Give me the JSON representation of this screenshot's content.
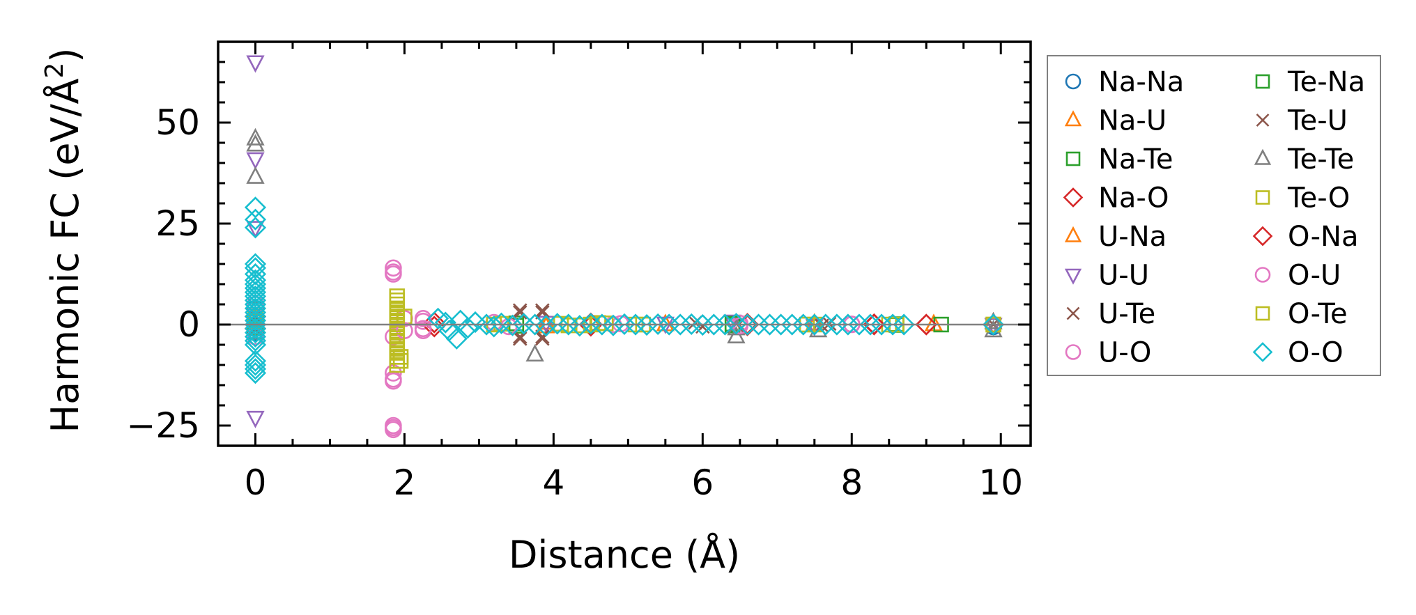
{
  "chart_data": {
    "type": "scatter",
    "title": "",
    "xlabel": "Distance (Å)",
    "ylabel_main": "Harmonic FC (eV/Å",
    "ylabel_sup": "2",
    "ylabel_close": ")",
    "xlim": [
      -0.5,
      10.4
    ],
    "ylim": [
      -30,
      70
    ],
    "xticks": [
      0,
      2,
      4,
      6,
      8,
      10
    ],
    "xtick_labels": [
      "0",
      "2",
      "4",
      "6",
      "8",
      "10"
    ],
    "yticks": [
      -25,
      0,
      25,
      50
    ],
    "ytick_labels": [
      "−25",
      "0",
      "25",
      "50"
    ],
    "zero_line": true,
    "grid": false,
    "legend_position": "outside-right",
    "series": [
      {
        "name": "Na-Na",
        "marker": "circle",
        "color": "#1f77b4",
        "points": [
          [
            0,
            4
          ],
          [
            0,
            2
          ],
          [
            0,
            -2
          ],
          [
            0,
            1
          ],
          [
            9.9,
            0
          ],
          [
            9.9,
            -0.5
          ]
        ]
      },
      {
        "name": "Na-U",
        "marker": "triangle-up",
        "color": "#ff7f0e",
        "points": [
          [
            0,
            2
          ],
          [
            0,
            -1
          ],
          [
            3.9,
            -0.5
          ],
          [
            5.5,
            0
          ],
          [
            7.5,
            0.2
          ],
          [
            9.1,
            0
          ]
        ]
      },
      {
        "name": "Na-Te",
        "marker": "square",
        "color": "#2ca02c",
        "points": [
          [
            0,
            1
          ],
          [
            0,
            -1
          ],
          [
            3.5,
            0.3
          ],
          [
            6.4,
            -0.2
          ],
          [
            8.6,
            0.1
          ]
        ]
      },
      {
        "name": "Na-O",
        "marker": "diamond",
        "color": "#d62728",
        "points": [
          [
            0,
            2
          ],
          [
            0,
            -1
          ],
          [
            2.4,
            0.5
          ],
          [
            4.5,
            -0.3
          ],
          [
            6.6,
            0.2
          ],
          [
            8.3,
            0
          ],
          [
            9.0,
            0
          ]
        ]
      },
      {
        "name": "U-Na",
        "marker": "triangle-up",
        "color": "#ff7f0e",
        "points": [
          [
            0,
            2
          ],
          [
            0,
            -1
          ],
          [
            3.9,
            0.4
          ],
          [
            5.5,
            0
          ],
          [
            7.5,
            -0.2
          ],
          [
            9.1,
            0
          ]
        ]
      },
      {
        "name": "U-U",
        "marker": "triangle-down",
        "color": "#9467bd",
        "points": [
          [
            0,
            65
          ],
          [
            0,
            41
          ],
          [
            0,
            24
          ],
          [
            0,
            -23
          ],
          [
            3.9,
            0.5
          ],
          [
            5.5,
            0.3
          ],
          [
            6.4,
            0.8
          ],
          [
            7.5,
            -0.3
          ],
          [
            9.9,
            0
          ]
        ]
      },
      {
        "name": "U-Te",
        "marker": "x",
        "color": "#8c564b",
        "points": [
          [
            0,
            2
          ],
          [
            0,
            -1
          ],
          [
            3.55,
            3.5
          ],
          [
            3.55,
            -3.5
          ],
          [
            3.85,
            3.5
          ],
          [
            3.85,
            -3.5
          ],
          [
            5.9,
            0.5
          ],
          [
            7.6,
            -0.3
          ],
          [
            9.9,
            0
          ]
        ]
      },
      {
        "name": "U-O",
        "marker": "circle",
        "color": "#e377c2",
        "points": [
          [
            0,
            5
          ],
          [
            0,
            -3
          ],
          [
            1.85,
            14
          ],
          [
            1.85,
            12.5
          ],
          [
            1.85,
            -3
          ],
          [
            1.85,
            -12
          ],
          [
            1.85,
            -13.5
          ],
          [
            1.85,
            -25
          ],
          [
            1.85,
            -26
          ],
          [
            2.0,
            1.5
          ],
          [
            2.25,
            0.8
          ],
          [
            2.25,
            -1.5
          ],
          [
            3.2,
            0.5
          ],
          [
            4.8,
            0
          ],
          [
            6.5,
            0.3
          ],
          [
            8.0,
            0
          ],
          [
            9.9,
            0
          ]
        ]
      },
      {
        "name": "Te-Na",
        "marker": "square",
        "color": "#2ca02c",
        "points": [
          [
            0,
            1
          ],
          [
            0,
            -1
          ],
          [
            3.5,
            -0.3
          ],
          [
            6.4,
            0.2
          ],
          [
            8.6,
            -0.1
          ],
          [
            9.2,
            0
          ]
        ]
      },
      {
        "name": "Te-U",
        "marker": "x",
        "color": "#8c564b",
        "points": [
          [
            0,
            -1
          ],
          [
            3.55,
            3
          ],
          [
            3.55,
            -3
          ],
          [
            3.85,
            3
          ],
          [
            3.85,
            -3
          ],
          [
            6.0,
            -0.5
          ],
          [
            7.7,
            0.2
          ]
        ]
      },
      {
        "name": "Te-Te",
        "marker": "triangle-up",
        "color": "#7f7f7f",
        "points": [
          [
            0,
            46
          ],
          [
            0,
            44.5
          ],
          [
            0,
            36.5
          ],
          [
            0,
            4
          ],
          [
            0,
            -2
          ],
          [
            3.75,
            -7.5
          ],
          [
            6.45,
            -3
          ],
          [
            6.45,
            -1
          ],
          [
            7.55,
            -1.5
          ],
          [
            9.9,
            -1.5
          ],
          [
            9.9,
            0.5
          ]
        ]
      },
      {
        "name": "Te-O",
        "marker": "square",
        "color": "#bcbd22",
        "points": [
          [
            0,
            2
          ],
          [
            1.9,
            7
          ],
          [
            1.9,
            5
          ],
          [
            1.9,
            3
          ],
          [
            1.9,
            1
          ],
          [
            1.9,
            -1
          ],
          [
            1.9,
            -3
          ],
          [
            1.9,
            -5
          ],
          [
            1.9,
            -7
          ],
          [
            1.9,
            -9
          ],
          [
            1.9,
            -10
          ],
          [
            1.95,
            -8
          ],
          [
            2.0,
            2
          ],
          [
            3.2,
            0
          ],
          [
            4.1,
            0.2
          ],
          [
            4.4,
            -0.2
          ],
          [
            4.6,
            0.4
          ],
          [
            5.1,
            0
          ],
          [
            7.4,
            0
          ],
          [
            8.5,
            0
          ],
          [
            9.9,
            0
          ]
        ]
      },
      {
        "name": "O-Na",
        "marker": "diamond",
        "color": "#d62728",
        "points": [
          [
            0,
            2
          ],
          [
            0,
            -1
          ],
          [
            2.4,
            -0.5
          ],
          [
            4.5,
            0.3
          ],
          [
            6.6,
            -0.2
          ],
          [
            8.3,
            0.1
          ],
          [
            9.0,
            0
          ]
        ]
      },
      {
        "name": "O-U",
        "marker": "circle",
        "color": "#e377c2",
        "points": [
          [
            0,
            5
          ],
          [
            0,
            -3
          ],
          [
            1.85,
            13
          ],
          [
            1.85,
            -14
          ],
          [
            1.85,
            -25.5
          ],
          [
            2.0,
            -1.5
          ],
          [
            2.25,
            1.5
          ],
          [
            2.25,
            -1
          ],
          [
            3.4,
            -0.5
          ],
          [
            4.9,
            0.2
          ],
          [
            6.5,
            -0.3
          ],
          [
            8.0,
            0.1
          ]
        ]
      },
      {
        "name": "O-Te",
        "marker": "square",
        "color": "#bcbd22",
        "points": [
          [
            0,
            1
          ],
          [
            1.9,
            6
          ],
          [
            1.9,
            4
          ],
          [
            1.9,
            2
          ],
          [
            1.9,
            0
          ],
          [
            1.9,
            -2
          ],
          [
            1.9,
            -4
          ],
          [
            1.9,
            -6
          ],
          [
            1.9,
            -8
          ],
          [
            1.95,
            -9
          ],
          [
            3.3,
            0.2
          ],
          [
            4.2,
            -0.2
          ],
          [
            4.5,
            0
          ],
          [
            4.7,
            0.3
          ],
          [
            5.2,
            0
          ],
          [
            7.5,
            0
          ],
          [
            8.6,
            0
          ],
          [
            9.9,
            0
          ]
        ]
      },
      {
        "name": "O-O",
        "marker": "diamond",
        "color": "#17becf",
        "points": [
          [
            0,
            29
          ],
          [
            0,
            26
          ],
          [
            0,
            24
          ],
          [
            0,
            15
          ],
          [
            0,
            14
          ],
          [
            0,
            12.5
          ],
          [
            0,
            11
          ],
          [
            0,
            10
          ],
          [
            0,
            9
          ],
          [
            0,
            8
          ],
          [
            0,
            7
          ],
          [
            0,
            6
          ],
          [
            0,
            5
          ],
          [
            0,
            4
          ],
          [
            0,
            3
          ],
          [
            0,
            2
          ],
          [
            0,
            1
          ],
          [
            0,
            0
          ],
          [
            0,
            -1
          ],
          [
            0,
            -2
          ],
          [
            0,
            -3
          ],
          [
            0,
            -4
          ],
          [
            0,
            -5
          ],
          [
            0,
            -9
          ],
          [
            0,
            -10
          ],
          [
            0,
            -11
          ],
          [
            0,
            -12
          ],
          [
            2.45,
            1.5
          ],
          [
            2.55,
            0.5
          ],
          [
            2.6,
            -1.5
          ],
          [
            2.7,
            -3.5
          ],
          [
            2.75,
            1
          ],
          [
            2.85,
            -0.8
          ],
          [
            2.95,
            0.6
          ],
          [
            3.1,
            0
          ],
          [
            3.2,
            -0.5
          ],
          [
            3.3,
            0.3
          ],
          [
            3.45,
            -0.2
          ],
          [
            3.6,
            0.2
          ],
          [
            3.75,
            0
          ],
          [
            3.9,
            -0.3
          ],
          [
            4.05,
            0.2
          ],
          [
            4.2,
            0
          ],
          [
            4.35,
            -0.3
          ],
          [
            4.5,
            0.2
          ],
          [
            4.65,
            0
          ],
          [
            4.8,
            -0.2
          ],
          [
            4.95,
            0.1
          ],
          [
            5.1,
            0
          ],
          [
            5.25,
            -0.1
          ],
          [
            5.4,
            0.1
          ],
          [
            5.55,
            0
          ],
          [
            5.7,
            0
          ],
          [
            5.85,
            0.1
          ],
          [
            6.0,
            -0.1
          ],
          [
            6.15,
            0
          ],
          [
            6.3,
            0
          ],
          [
            6.45,
            0.2
          ],
          [
            6.6,
            0
          ],
          [
            6.75,
            0
          ],
          [
            6.9,
            0
          ],
          [
            7.05,
            0
          ],
          [
            7.2,
            0
          ],
          [
            7.35,
            0
          ],
          [
            7.5,
            0
          ],
          [
            7.65,
            0
          ],
          [
            7.8,
            0
          ],
          [
            7.95,
            0
          ],
          [
            8.1,
            0
          ],
          [
            8.25,
            0
          ],
          [
            8.4,
            0
          ],
          [
            8.55,
            0
          ],
          [
            8.7,
            0
          ],
          [
            9.9,
            0
          ]
        ]
      }
    ]
  }
}
